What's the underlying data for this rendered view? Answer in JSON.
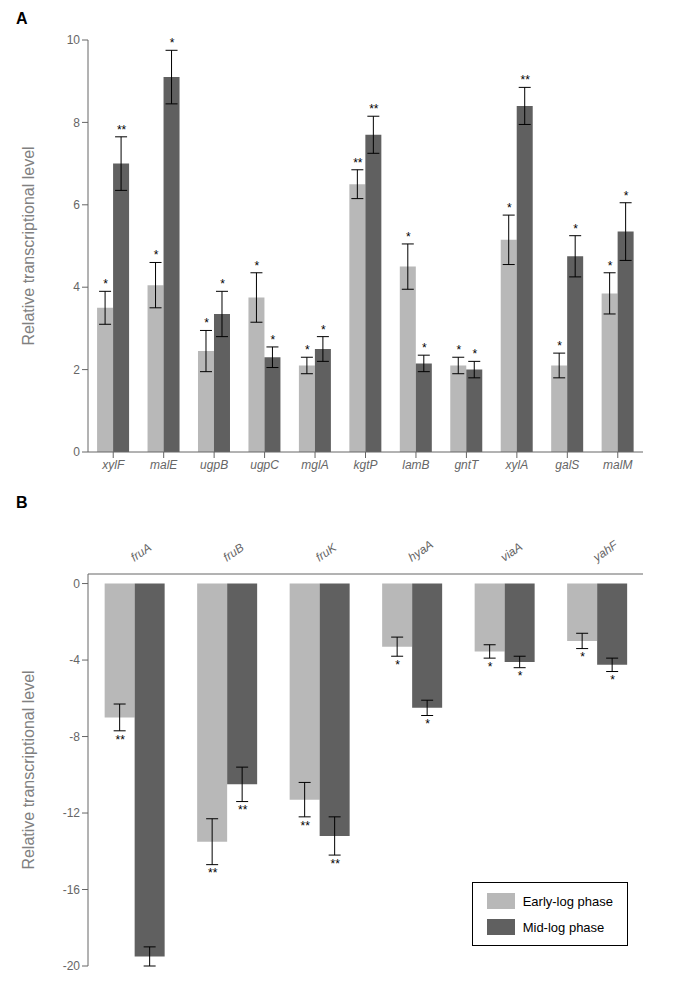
{
  "chart_data": [
    {
      "type": "bar",
      "title": "A",
      "categories": [
        "xylF",
        "malE",
        "ugpB",
        "ugpC",
        "mglA",
        "kgtP",
        "lamB",
        "gntT",
        "xylA",
        "galS",
        "malM"
      ],
      "series": [
        {
          "color": "#b8b8b8",
          "values": [
            3.5,
            4.05,
            2.45,
            3.75,
            2.1,
            6.5,
            4.5,
            2.1,
            5.15,
            2.1,
            3.85
          ],
          "errors": [
            0.4,
            0.55,
            0.5,
            0.6,
            0.2,
            0.35,
            0.55,
            0.2,
            0.6,
            0.3,
            0.5
          ],
          "annotations": [
            "*",
            "*",
            "*",
            "*",
            "*",
            "**",
            "*",
            "*",
            "*",
            "*",
            "*"
          ]
        },
        {
          "color": "#606060",
          "values": [
            7.0,
            9.1,
            3.35,
            2.3,
            2.5,
            7.7,
            2.15,
            2.0,
            8.4,
            4.75,
            5.35
          ],
          "errors": [
            0.65,
            0.65,
            0.55,
            0.25,
            0.3,
            0.45,
            0.2,
            0.2,
            0.45,
            0.5,
            0.7
          ],
          "annotations": [
            "**",
            "*",
            "*",
            "*",
            "*",
            "**",
            "*",
            "*",
            "**",
            "*",
            "*"
          ]
        }
      ],
      "ylim": [
        0,
        10
      ],
      "yticks": [
        0,
        2,
        4,
        6,
        8,
        10
      ],
      "ylabel": "Relative transcriptional level"
    },
    {
      "type": "bar",
      "title": "B",
      "categories": [
        "fruA",
        "fruB",
        "fruK",
        "hyaA",
        "viaA",
        "yahF"
      ],
      "series": [
        {
          "name": "Early-log phase",
          "color": "#b8b8b8",
          "values": [
            -7.0,
            -13.5,
            -11.3,
            -3.3,
            -3.55,
            -3.0
          ],
          "errors": [
            0.7,
            1.2,
            0.9,
            0.5,
            0.35,
            0.4
          ],
          "annotations": [
            "**",
            "**",
            "**",
            "*",
            "*",
            "*"
          ]
        },
        {
          "name": "Mid-log phase",
          "color": "#606060",
          "values": [
            -19.5,
            -10.5,
            -13.2,
            -6.5,
            -4.1,
            -4.25
          ],
          "errors": [
            0.5,
            0.9,
            1.0,
            0.4,
            0.3,
            0.35
          ],
          "annotations": [
            null,
            "**",
            "**",
            "*",
            "*",
            "*"
          ]
        }
      ],
      "ylim": [
        -20,
        0.5
      ],
      "yticks": [
        -20,
        -16,
        -12,
        -8,
        -4,
        0
      ],
      "ylabel": "Relative transcriptional level",
      "legend": "lower right"
    }
  ]
}
